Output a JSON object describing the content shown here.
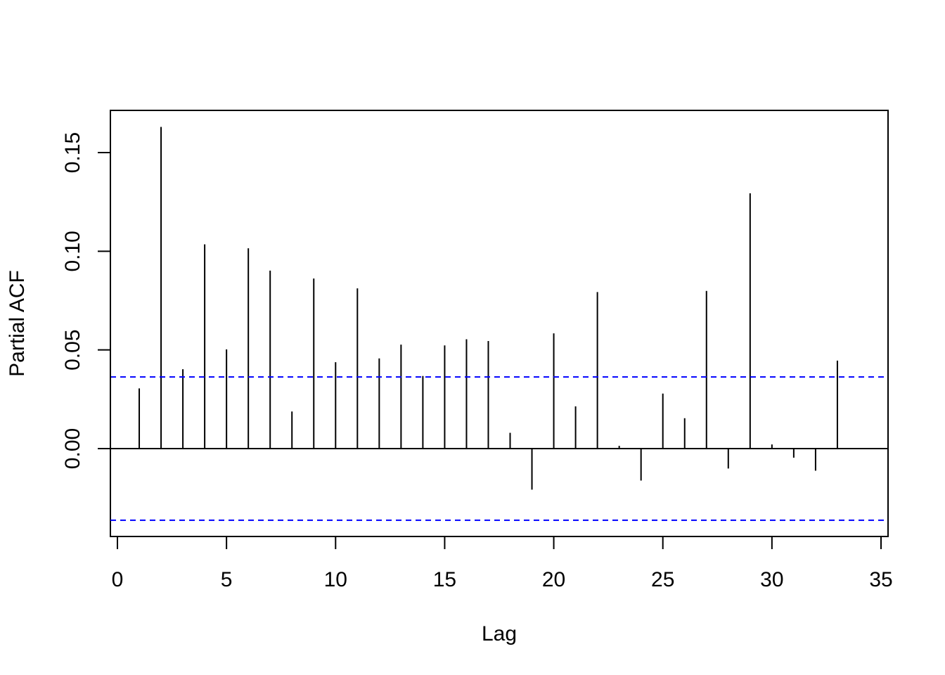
{
  "chart_data": {
    "type": "bar",
    "xlabel": "Lag",
    "ylabel": "Partial ACF",
    "xlim": [
      0,
      35
    ],
    "ylim": [
      -0.045,
      0.17
    ],
    "x_ticks": [
      0,
      5,
      10,
      15,
      20,
      25,
      30,
      35
    ],
    "x_tick_labels": [
      "0",
      "5",
      "10",
      "15",
      "20",
      "25",
      "30",
      "35"
    ],
    "y_ticks": [
      0.0,
      0.05,
      0.1,
      0.15
    ],
    "y_tick_labels": [
      "0.00",
      "0.05",
      "0.10",
      "0.15"
    ],
    "lags": [
      1,
      2,
      3,
      4,
      5,
      6,
      7,
      8,
      9,
      10,
      11,
      12,
      13,
      14,
      15,
      16,
      17,
      18,
      19,
      20,
      21,
      22,
      23,
      24,
      25,
      26,
      27,
      28,
      29,
      30,
      31,
      32,
      33
    ],
    "values": [
      0.0305,
      0.163,
      0.0402,
      0.1035,
      0.0503,
      0.1015,
      0.0902,
      0.0188,
      0.0862,
      0.0438,
      0.0812,
      0.0457,
      0.0527,
      0.0368,
      0.0523,
      0.0554,
      0.0545,
      0.008,
      -0.0208,
      0.0584,
      0.0214,
      0.0793,
      0.0014,
      -0.0162,
      0.0279,
      0.0154,
      0.0799,
      -0.0101,
      0.1294,
      0.0021,
      -0.0046,
      -0.0112,
      0.0446
    ],
    "confidence_bound": 0.0363,
    "bar_color": "#000000",
    "ci_color": "#0000ff",
    "zero_line_color": "#000000"
  }
}
